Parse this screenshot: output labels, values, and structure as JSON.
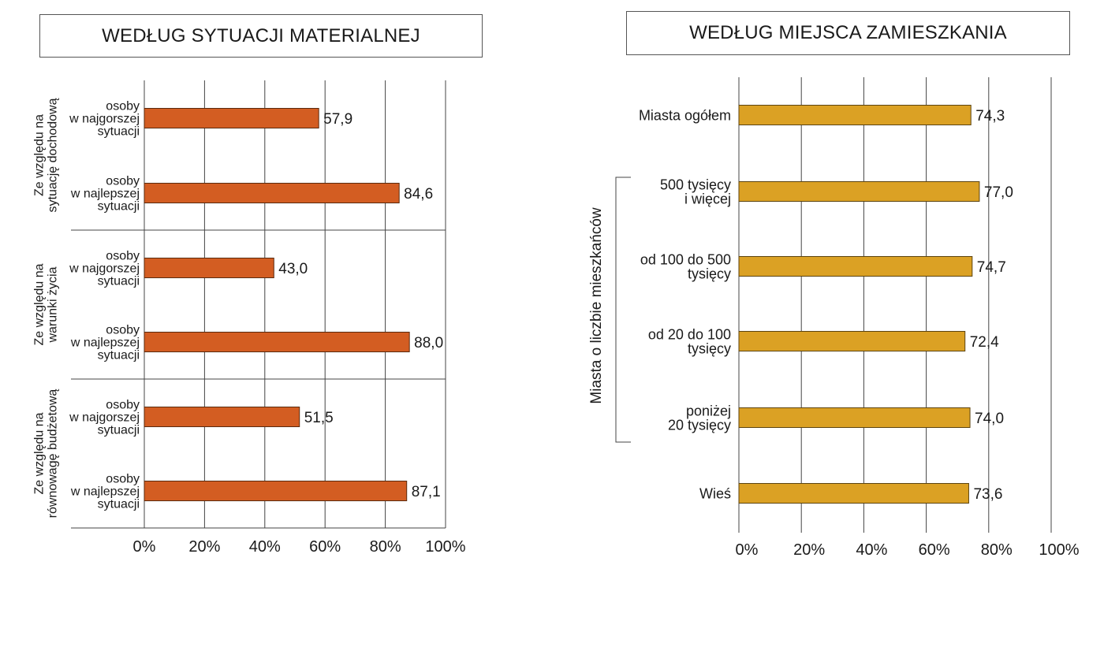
{
  "chart_data": [
    {
      "type": "bar",
      "orientation": "horizontal",
      "title": "WEDŁUG SYTUACJI MATERIALNEJ",
      "color": "#D35D22",
      "xlim": [
        0,
        100
      ],
      "x_ticks": [
        "0%",
        "20%",
        "40%",
        "60%",
        "80%",
        "100%"
      ],
      "groups": [
        {
          "label": [
            "Ze względu na",
            "sytuację dochodową"
          ],
          "bars": [
            {
              "label": [
                "osoby",
                "w najgorszej",
                "sytuacji"
              ],
              "value": 57.9,
              "value_label": "57,9"
            },
            {
              "label": [
                "osoby",
                "w najlepszej",
                "sytuacji"
              ],
              "value": 84.6,
              "value_label": "84,6"
            }
          ]
        },
        {
          "label": [
            "Ze względu na",
            "warunki życia"
          ],
          "bars": [
            {
              "label": [
                "osoby",
                "w najgorszej",
                "sytuacji"
              ],
              "value": 43.0,
              "value_label": "43,0"
            },
            {
              "label": [
                "osoby",
                "w najlepszej",
                "sytuacji"
              ],
              "value": 88.0,
              "value_label": "88,0"
            }
          ]
        },
        {
          "label": [
            "Ze względu na",
            "równowagę budżetową"
          ],
          "bars": [
            {
              "label": [
                "osoby",
                "w najgorszej",
                "sytuacji"
              ],
              "value": 51.5,
              "value_label": "51,5"
            },
            {
              "label": [
                "osoby",
                "w najlepszej",
                "sytuacji"
              ],
              "value": 87.1,
              "value_label": "87,1"
            }
          ]
        }
      ]
    },
    {
      "type": "bar",
      "orientation": "horizontal",
      "title": "WEDŁUG MIEJSCA ZAMIESZKANIA",
      "color": "#DBA124",
      "xlim": [
        0,
        100
      ],
      "x_ticks": [
        "0%",
        "20%",
        "40%",
        "60%",
        "80%",
        "100%"
      ],
      "bracket_label": "Miasta o liczbie mieszkańców",
      "bars": [
        {
          "label": [
            "Miasta ogółem"
          ],
          "value": 74.3,
          "value_label": "74,3"
        },
        {
          "label": [
            "500 tysięcy",
            "i więcej"
          ],
          "value": 77.0,
          "value_label": "77,0"
        },
        {
          "label": [
            "od 100 do 500",
            "tysięcy"
          ],
          "value": 74.7,
          "value_label": "74,7"
        },
        {
          "label": [
            "od 20 do 100",
            "tysięcy"
          ],
          "value": 72.4,
          "value_label": "72,4"
        },
        {
          "label": [
            "poniżej",
            "20 tysięcy"
          ],
          "value": 74.0,
          "value_label": "74,0"
        },
        {
          "label": [
            "Wieś"
          ],
          "value": 73.6,
          "value_label": "73,6"
        }
      ]
    }
  ]
}
